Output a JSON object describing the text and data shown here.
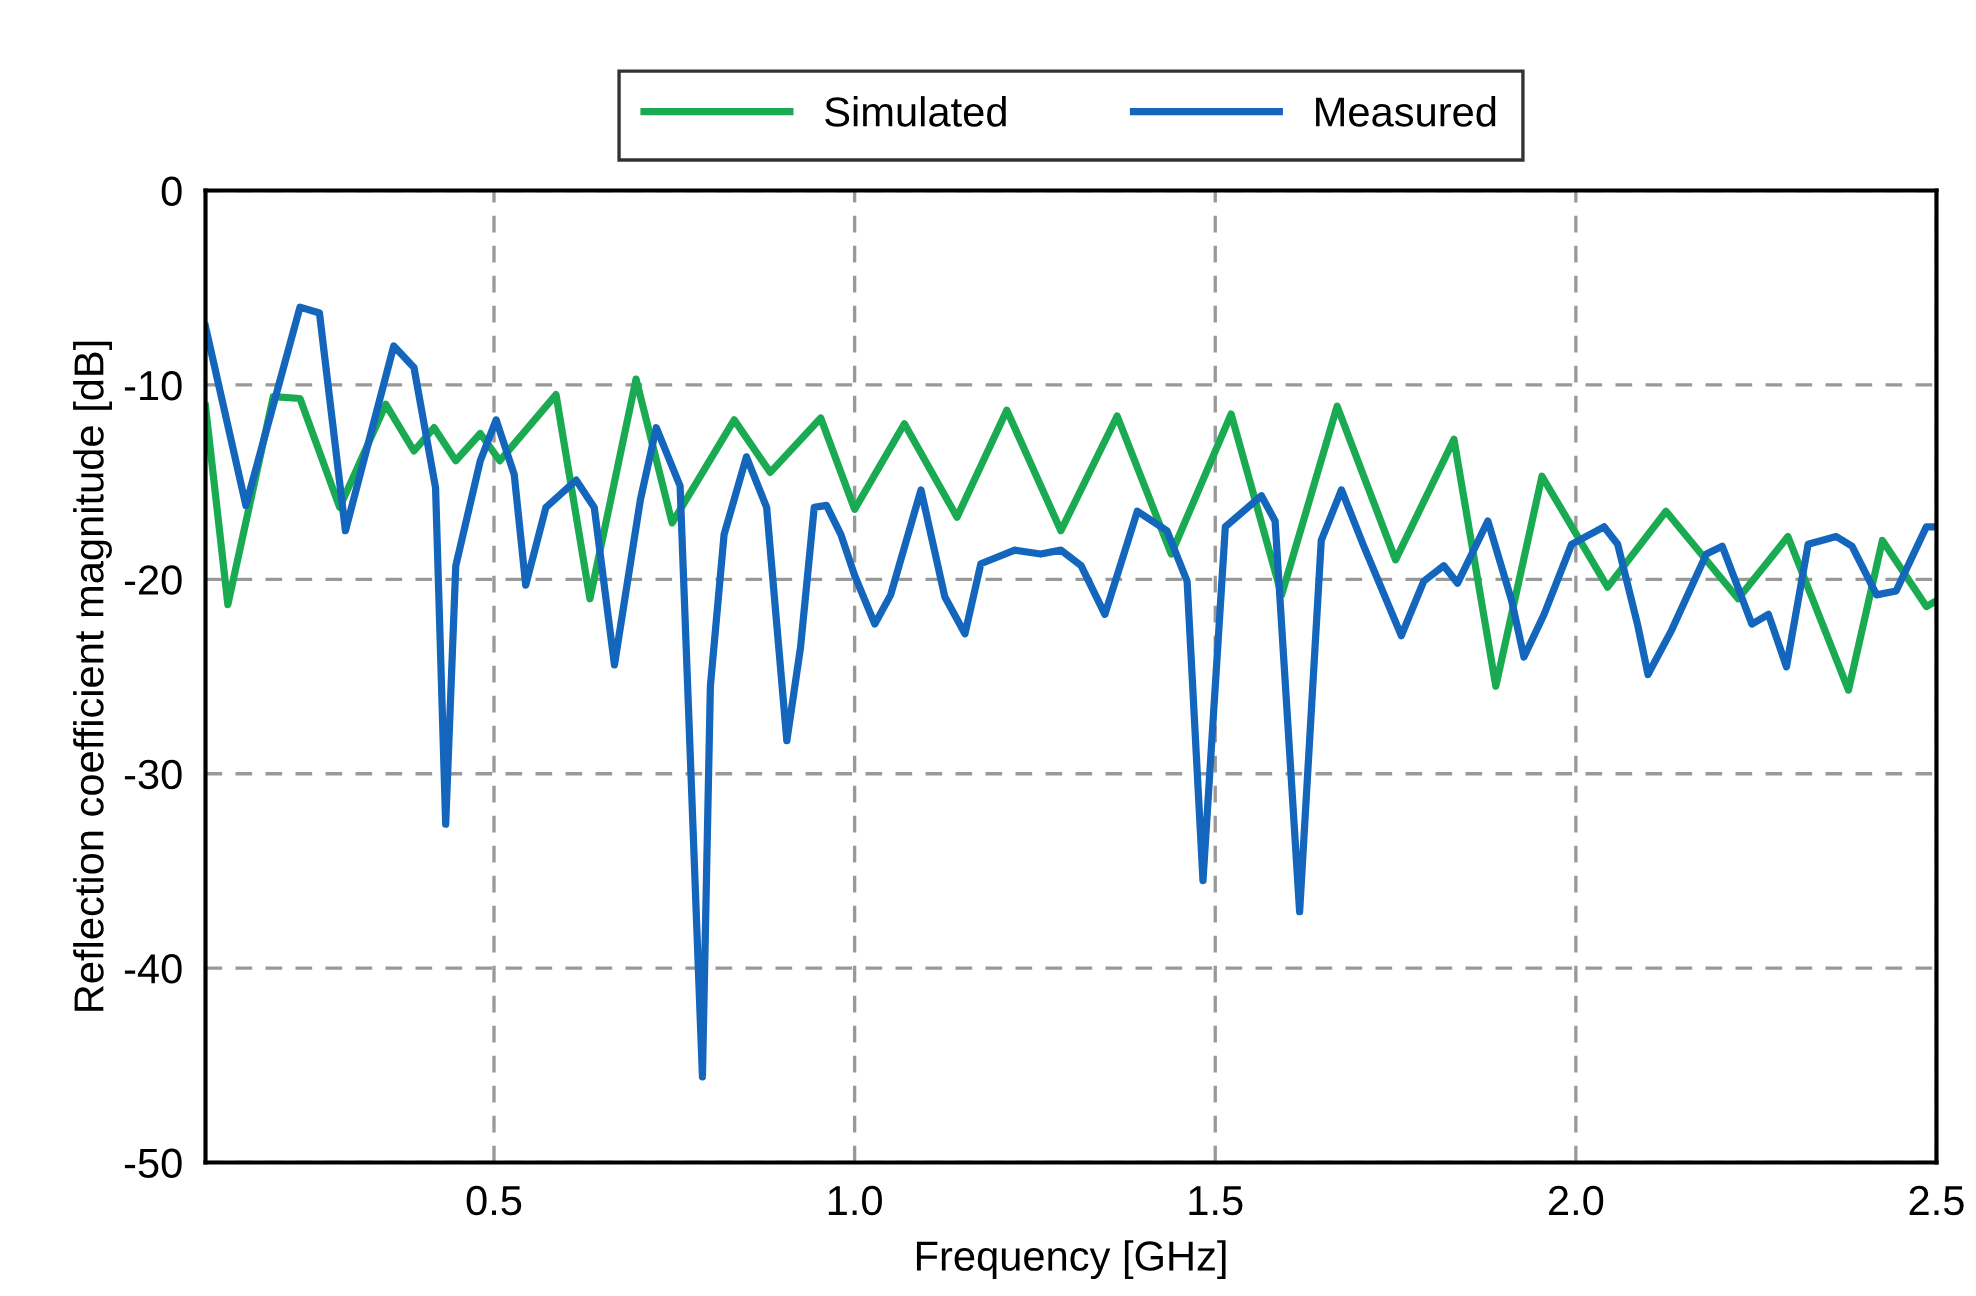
{
  "chart_data": {
    "type": "line",
    "xlabel": "Frequency [GHz]",
    "ylabel": "Reflection coefficient magnitude [dB]",
    "xlim": [
      0.1,
      2.5
    ],
    "xticks": [
      {
        "value": 0.5,
        "label": "0.5"
      },
      {
        "value": 1.0,
        "label": "1.0"
      },
      {
        "value": 1.5,
        "label": "1.5"
      },
      {
        "value": 2.0,
        "label": "2.0"
      },
      {
        "value": 2.5,
        "label": "2.5"
      }
    ],
    "ylim": [
      -50,
      0
    ],
    "yticks": [
      -50,
      -40,
      -30,
      -20,
      -10,
      0
    ],
    "grid": true,
    "legend": "top",
    "line_style": "solid",
    "marker": "none",
    "series": [
      {
        "name": "Simulated",
        "color": "#1aab52",
        "x": [
          0.1,
          0.131,
          0.194,
          0.231,
          0.286,
          0.35,
          0.389,
          0.417,
          0.447,
          0.481,
          0.508,
          0.586,
          0.633,
          0.697,
          0.747,
          0.833,
          0.883,
          0.953,
          1.0,
          1.069,
          1.142,
          1.211,
          1.286,
          1.364,
          1.439,
          1.522,
          1.592,
          1.669,
          1.75,
          1.831,
          1.889,
          1.953,
          2.044,
          2.125,
          2.225,
          2.294,
          2.378,
          2.425,
          2.486,
          2.5
        ],
        "values": [
          -11.1,
          -21.3,
          -10.6,
          -10.7,
          -16.3,
          -11.0,
          -13.4,
          -12.2,
          -13.9,
          -12.5,
          -13.9,
          -10.5,
          -21.0,
          -9.7,
          -17.1,
          -11.8,
          -14.5,
          -11.7,
          -16.4,
          -12.0,
          -16.8,
          -11.3,
          -17.5,
          -11.6,
          -18.7,
          -11.5,
          -20.8,
          -11.1,
          -19.0,
          -12.8,
          -25.5,
          -14.7,
          -20.4,
          -16.5,
          -21.0,
          -17.8,
          -25.7,
          -18.0,
          -21.4,
          -21.1
        ]
      },
      {
        "name": "Measured",
        "color": "#1366bb",
        "x": [
          0.1,
          0.156,
          0.231,
          0.258,
          0.294,
          0.361,
          0.389,
          0.419,
          0.433,
          0.447,
          0.481,
          0.503,
          0.528,
          0.544,
          0.572,
          0.614,
          0.639,
          0.667,
          0.703,
          0.725,
          0.758,
          0.789,
          0.8,
          0.819,
          0.85,
          0.878,
          0.906,
          0.925,
          0.944,
          0.961,
          0.981,
          1.0,
          1.028,
          1.05,
          1.092,
          1.125,
          1.153,
          1.175,
          1.222,
          1.258,
          1.286,
          1.314,
          1.347,
          1.392,
          1.433,
          1.461,
          1.483,
          1.514,
          1.564,
          1.583,
          1.617,
          1.647,
          1.675,
          1.706,
          1.758,
          1.789,
          1.817,
          1.836,
          1.878,
          1.911,
          1.928,
          1.956,
          1.994,
          2.039,
          2.058,
          2.086,
          2.1,
          2.133,
          2.181,
          2.203,
          2.244,
          2.267,
          2.292,
          2.322,
          2.361,
          2.383,
          2.417,
          2.444,
          2.486,
          2.5
        ],
        "values": [
          -7.0,
          -16.2,
          -6.0,
          -6.3,
          -17.5,
          -8.0,
          -9.1,
          -15.3,
          -32.6,
          -19.3,
          -13.9,
          -11.8,
          -14.6,
          -20.3,
          -16.3,
          -14.9,
          -16.3,
          -24.4,
          -15.9,
          -12.2,
          -15.2,
          -45.6,
          -25.5,
          -17.7,
          -13.7,
          -16.3,
          -28.3,
          -23.5,
          -16.3,
          -16.2,
          -17.7,
          -19.8,
          -22.3,
          -20.8,
          -15.4,
          -20.9,
          -22.8,
          -19.2,
          -18.5,
          -18.7,
          -18.5,
          -19.3,
          -21.8,
          -16.5,
          -17.5,
          -20.1,
          -35.5,
          -17.3,
          -15.7,
          -17.0,
          -37.1,
          -18.0,
          -15.4,
          -18.3,
          -22.9,
          -20.1,
          -19.3,
          -20.2,
          -17.0,
          -21.1,
          -24.0,
          -21.8,
          -18.2,
          -17.3,
          -18.2,
          -22.4,
          -24.9,
          -22.6,
          -18.7,
          -18.3,
          -22.3,
          -21.8,
          -24.5,
          -18.2,
          -17.8,
          -18.3,
          -20.8,
          -20.6,
          -17.3,
          -17.3
        ]
      }
    ]
  }
}
